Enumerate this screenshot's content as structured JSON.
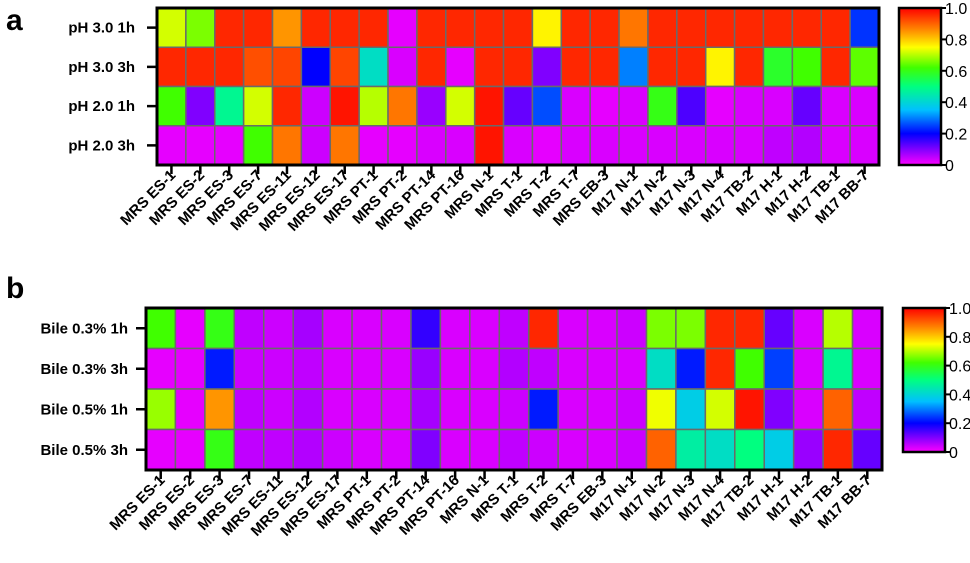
{
  "chart_data": [
    {
      "type": "heatmap",
      "panel": "a",
      "rows": [
        "pH 3.0 1h",
        "pH 3.0 3h",
        "pH 2.0 1h",
        "pH 2.0 3h"
      ],
      "columns": [
        "MRS ES-1",
        "MRS ES-2",
        "MRS ES-3",
        "MRS ES-7",
        "MRS ES-11",
        "MRS ES-12",
        "MRS ES-17",
        "MRS PT-1",
        "MRS PT-2",
        "MRS PT-14",
        "MRS PT-16",
        "MRS N-1",
        "MRS T-1",
        "MRS T-2",
        "MRS T-7",
        "MRS EB-3",
        "M17 N-1",
        "M17 N-2",
        "M17 N-3",
        "M17 N-4",
        "M17 TB-2",
        "M17 H-1",
        "M17 H-2",
        "M17 TB-1",
        "M17 BB-7"
      ],
      "values": [
        [
          0.72,
          0.66,
          0.96,
          0.96,
          0.85,
          0.96,
          0.96,
          0.96,
          0.02,
          0.96,
          0.96,
          0.96,
          0.96,
          0.76,
          0.96,
          0.96,
          0.88,
          0.96,
          0.96,
          0.96,
          0.96,
          0.96,
          0.96,
          0.96,
          0.24
        ],
        [
          0.96,
          0.96,
          0.96,
          0.92,
          0.93,
          0.2,
          0.93,
          0.42,
          0.03,
          0.96,
          0.02,
          0.96,
          0.96,
          0.1,
          0.96,
          0.96,
          0.3,
          0.96,
          0.96,
          0.76,
          0.96,
          0.58,
          0.62,
          0.96,
          0.64
        ],
        [
          0.62,
          0.1,
          0.48,
          0.72,
          0.96,
          0.04,
          0.98,
          0.7,
          0.88,
          0.08,
          0.72,
          0.98,
          0.12,
          0.26,
          0.03,
          0.02,
          0.03,
          0.6,
          0.14,
          0.02,
          0.03,
          0.03,
          0.12,
          0.03,
          0.03
        ],
        [
          0.02,
          0.02,
          0.02,
          0.62,
          0.88,
          0.04,
          0.88,
          0.02,
          0.02,
          0.03,
          0.03,
          0.98,
          0.03,
          0.02,
          0.03,
          0.03,
          0.03,
          0.03,
          0.03,
          0.03,
          0.03,
          0.05,
          0.06,
          0.03,
          0.03
        ]
      ],
      "colorbar": {
        "min": 0,
        "max": 1.0,
        "ticks": [
          "0",
          "0.2",
          "0.4",
          "0.6",
          "0.8",
          "1.0"
        ]
      }
    },
    {
      "type": "heatmap",
      "panel": "b",
      "rows": [
        "Bile 0.3% 1h",
        "Bile 0.3% 3h",
        "Bile 0.5% 1h",
        "Bile 0.5% 3h"
      ],
      "columns": [
        "MRS ES-1",
        "MRS ES-2",
        "MRS ES-3",
        "MRS ES-7",
        "MRS ES-11",
        "MRS ES-12",
        "MRS ES-17",
        "MRS PT-1",
        "MRS PT-2",
        "MRS PT-14",
        "MRS PT-16",
        "MRS N-1",
        "MRS T-1",
        "MRS T-2",
        "MRS T-7",
        "MRS EB-3",
        "M17 N-1",
        "M17 N-2",
        "M17 N-3",
        "M17 N-4",
        "M17 TB-2",
        "M17 H-1",
        "M17 H-2",
        "M17 TB-1",
        "M17 BB-7"
      ],
      "values": [
        [
          0.62,
          0.02,
          0.6,
          0.05,
          0.04,
          0.07,
          0.03,
          0.03,
          0.03,
          0.16,
          0.03,
          0.03,
          0.05,
          0.96,
          0.03,
          0.03,
          0.04,
          0.66,
          0.66,
          0.96,
          0.96,
          0.12,
          0.03,
          0.7,
          0.03
        ],
        [
          0.02,
          0.02,
          0.22,
          0.04,
          0.04,
          0.05,
          0.03,
          0.03,
          0.03,
          0.08,
          0.03,
          0.03,
          0.06,
          0.05,
          0.03,
          0.03,
          0.03,
          0.42,
          0.22,
          0.96,
          0.62,
          0.25,
          0.03,
          0.48,
          0.03
        ],
        [
          0.68,
          0.02,
          0.85,
          0.05,
          0.04,
          0.06,
          0.03,
          0.03,
          0.03,
          0.07,
          0.03,
          0.03,
          0.04,
          0.22,
          0.03,
          0.03,
          0.04,
          0.74,
          0.38,
          0.72,
          0.98,
          0.1,
          0.03,
          0.9,
          0.05
        ],
        [
          0.02,
          0.02,
          0.6,
          0.05,
          0.05,
          0.06,
          0.04,
          0.03,
          0.03,
          0.1,
          0.03,
          0.03,
          0.05,
          0.04,
          0.03,
          0.03,
          0.04,
          0.9,
          0.46,
          0.42,
          0.5,
          0.38,
          0.08,
          0.96,
          0.12
        ]
      ],
      "colorbar": {
        "min": 0,
        "max": 1.0,
        "ticks": [
          "0",
          "0.2",
          "0.4",
          "0.6",
          "0.8",
          "1.0"
        ]
      }
    }
  ]
}
